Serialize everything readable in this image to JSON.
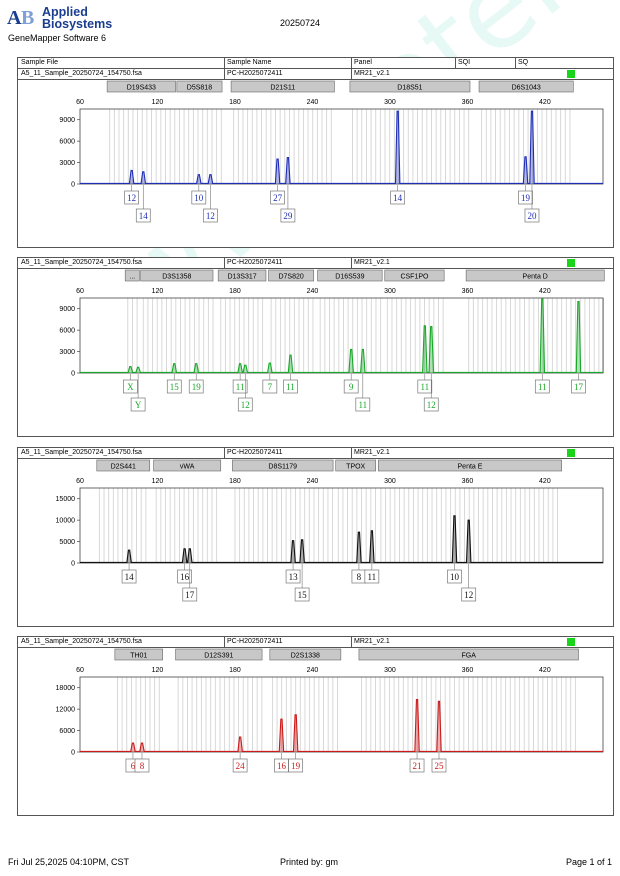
{
  "header": {
    "company": "Applied Biosystems",
    "software": "GeneMapper Software 6",
    "run_date": "20250724"
  },
  "columns": [
    "Sample File",
    "Sample Name",
    "Panel",
    "SQI",
    "SQ"
  ],
  "footer": {
    "left": "Fri Jul 25,2025 04:10PM, CST",
    "center": "Printed by: gm",
    "right": "Page 1 of 1"
  },
  "watermark": "www.proteli.com.cn",
  "chart_data": [
    {
      "type": "line",
      "sample_file": "A5_11_Sample_20250724_154750.fsa",
      "sample_name": "PC-H2025072411",
      "panel": "MR21_v2.1",
      "color": "#1f2fb5",
      "x_ticks": [
        60,
        120,
        180,
        240,
        300,
        360,
        420
      ],
      "xlim": [
        60,
        465
      ],
      "ylim": [
        0,
        10500
      ],
      "y_ticks": [
        "0",
        "3000",
        "6000",
        "9000"
      ],
      "y_tick_values": [
        0,
        3000,
        6000,
        9000
      ],
      "markers": [
        {
          "label": "D19S433",
          "start": 81,
          "end": 134
        },
        {
          "label": "D5S818",
          "start": 135,
          "end": 170
        },
        {
          "label": "D21S11",
          "start": 177,
          "end": 257
        },
        {
          "label": "D18S51",
          "start": 269,
          "end": 362
        },
        {
          "label": "D6S1043",
          "start": 369,
          "end": 442
        }
      ],
      "peaks": [
        {
          "x": 100,
          "height": 1900
        },
        {
          "x": 109,
          "height": 1700
        },
        {
          "x": 152,
          "height": 1300
        },
        {
          "x": 161,
          "height": 1300
        },
        {
          "x": 213,
          "height": 3500
        },
        {
          "x": 221,
          "height": 3700
        },
        {
          "x": 306,
          "height": 10200
        },
        {
          "x": 405,
          "height": 3800
        },
        {
          "x": 410,
          "height": 10200
        }
      ],
      "allele_labels": [
        {
          "text": "12",
          "x": 100,
          "row": 1
        },
        {
          "text": "14",
          "x": 109,
          "row": 2
        },
        {
          "text": "10",
          "x": 152,
          "row": 1
        },
        {
          "text": "12",
          "x": 161,
          "row": 2
        },
        {
          "text": "27",
          "x": 213,
          "row": 1
        },
        {
          "text": "29",
          "x": 221,
          "row": 2
        },
        {
          "text": "14",
          "x": 306,
          "row": 1
        },
        {
          "text": "19",
          "x": 405,
          "row": 1
        },
        {
          "text": "20",
          "x": 410,
          "row": 2
        }
      ]
    },
    {
      "type": "line",
      "sample_file": "A5_11_Sample_20250724_154750.fsa",
      "sample_name": "PC-H2025072411",
      "panel": "MR21_v2.1",
      "color": "#1aa82a",
      "x_ticks": [
        60,
        120,
        180,
        240,
        300,
        360,
        420
      ],
      "xlim": [
        60,
        465
      ],
      "ylim": [
        0,
        10500
      ],
      "y_ticks": [
        "0",
        "3000",
        "6000",
        "9000"
      ],
      "y_tick_values": [
        0,
        3000,
        6000,
        9000
      ],
      "markers": [
        {
          "label": "...",
          "start": 95,
          "end": 106
        },
        {
          "label": "D3S1358",
          "start": 107,
          "end": 163
        },
        {
          "label": "D13S317",
          "start": 167,
          "end": 204
        },
        {
          "label": "D7S820",
          "start": 206,
          "end": 241
        },
        {
          "label": "D16S539",
          "start": 244,
          "end": 294
        },
        {
          "label": "CSF1PO",
          "start": 296,
          "end": 342
        },
        {
          "label": "Penta D",
          "start": 359,
          "end": 466
        }
      ],
      "peaks": [
        {
          "x": 99,
          "height": 900
        },
        {
          "x": 105,
          "height": 800
        },
        {
          "x": 133,
          "height": 1300
        },
        {
          "x": 150,
          "height": 1300
        },
        {
          "x": 184,
          "height": 1300
        },
        {
          "x": 188,
          "height": 1100
        },
        {
          "x": 207,
          "height": 1400
        },
        {
          "x": 223,
          "height": 2500
        },
        {
          "x": 270,
          "height": 3300
        },
        {
          "x": 279,
          "height": 3300
        },
        {
          "x": 327,
          "height": 6600
        },
        {
          "x": 332,
          "height": 6500
        },
        {
          "x": 418,
          "height": 10400
        },
        {
          "x": 446,
          "height": 10000
        }
      ],
      "allele_labels": [
        {
          "text": "X",
          "x": 99,
          "row": 1
        },
        {
          "text": "Y",
          "x": 105,
          "row": 2
        },
        {
          "text": "15",
          "x": 133,
          "row": 1
        },
        {
          "text": "19",
          "x": 150,
          "row": 1
        },
        {
          "text": "11",
          "x": 184,
          "row": 1
        },
        {
          "text": "12",
          "x": 188,
          "row": 2
        },
        {
          "text": "7",
          "x": 207,
          "row": 1
        },
        {
          "text": "11",
          "x": 223,
          "row": 1
        },
        {
          "text": "9",
          "x": 270,
          "row": 1
        },
        {
          "text": "11",
          "x": 279,
          "row": 2
        },
        {
          "text": "11",
          "x": 327,
          "row": 1
        },
        {
          "text": "12",
          "x": 332,
          "row": 2
        },
        {
          "text": "11",
          "x": 418,
          "row": 1
        },
        {
          "text": "17",
          "x": 446,
          "row": 1
        }
      ]
    },
    {
      "type": "line",
      "sample_file": "A5_11_Sample_20250724_154750.fsa",
      "sample_name": "PC-H2025072411",
      "panel": "MR21_v2.1",
      "color": "#111111",
      "x_ticks": [
        60,
        120,
        180,
        240,
        300,
        360,
        420
      ],
      "xlim": [
        60,
        465
      ],
      "ylim": [
        0,
        17500
      ],
      "y_ticks": [
        "0",
        "5000",
        "10000",
        "15000"
      ],
      "y_tick_values": [
        0,
        5000,
        10000,
        15000
      ],
      "markers": [
        {
          "label": "D2S441",
          "start": 73,
          "end": 114
        },
        {
          "label": "vWA",
          "start": 117,
          "end": 169
        },
        {
          "label": "D8S1179",
          "start": 178,
          "end": 256
        },
        {
          "label": "TPOX",
          "start": 258,
          "end": 289
        },
        {
          "label": "Penta E",
          "start": 291,
          "end": 433
        }
      ],
      "peaks": [
        {
          "x": 98,
          "height": 3000
        },
        {
          "x": 141,
          "height": 3300
        },
        {
          "x": 145,
          "height": 3300
        },
        {
          "x": 225,
          "height": 5200
        },
        {
          "x": 232,
          "height": 5400
        },
        {
          "x": 276,
          "height": 7200
        },
        {
          "x": 286,
          "height": 7500
        },
        {
          "x": 350,
          "height": 11000
        },
        {
          "x": 361,
          "height": 10000
        }
      ],
      "allele_labels": [
        {
          "text": "14",
          "x": 98,
          "row": 1
        },
        {
          "text": "16",
          "x": 141,
          "row": 1
        },
        {
          "text": "17",
          "x": 145,
          "row": 2
        },
        {
          "text": "13",
          "x": 225,
          "row": 1
        },
        {
          "text": "15",
          "x": 232,
          "row": 2
        },
        {
          "text": "8",
          "x": 276,
          "row": 1
        },
        {
          "text": "11",
          "x": 286,
          "row": 1
        },
        {
          "text": "10",
          "x": 350,
          "row": 1
        },
        {
          "text": "12",
          "x": 361,
          "row": 2
        }
      ]
    },
    {
      "type": "line",
      "sample_file": "A5_11_Sample_20250724_154750.fsa",
      "sample_name": "PC-H2025072411",
      "panel": "MR21_v2.1",
      "color": "#cc1a1a",
      "x_ticks": [
        60,
        120,
        180,
        240,
        300,
        360,
        420
      ],
      "xlim": [
        60,
        465
      ],
      "ylim": [
        0,
        21000
      ],
      "y_ticks": [
        "0",
        "6000",
        "12000",
        "18000"
      ],
      "y_tick_values": [
        0,
        6000,
        12000,
        18000
      ],
      "markers": [
        {
          "label": "TH01",
          "start": 87,
          "end": 124
        },
        {
          "label": "D12S391",
          "start": 134,
          "end": 201
        },
        {
          "label": "D2S1338",
          "start": 207,
          "end": 262
        },
        {
          "label": "FGA",
          "start": 276,
          "end": 446
        }
      ],
      "peaks": [
        {
          "x": 101,
          "height": 2500
        },
        {
          "x": 108,
          "height": 2500
        },
        {
          "x": 184,
          "height": 4200
        },
        {
          "x": 216,
          "height": 9200
        },
        {
          "x": 227,
          "height": 10400
        },
        {
          "x": 321,
          "height": 14700
        },
        {
          "x": 338,
          "height": 14200
        }
      ],
      "allele_labels": [
        {
          "text": "6",
          "x": 101,
          "row": 1
        },
        {
          "text": "8",
          "x": 108,
          "row": 1
        },
        {
          "text": "24",
          "x": 184,
          "row": 1
        },
        {
          "text": "16",
          "x": 216,
          "row": 1
        },
        {
          "text": "19",
          "x": 227,
          "row": 1
        },
        {
          "text": "21",
          "x": 321,
          "row": 1
        },
        {
          "text": "25",
          "x": 338,
          "row": 1
        }
      ]
    }
  ]
}
